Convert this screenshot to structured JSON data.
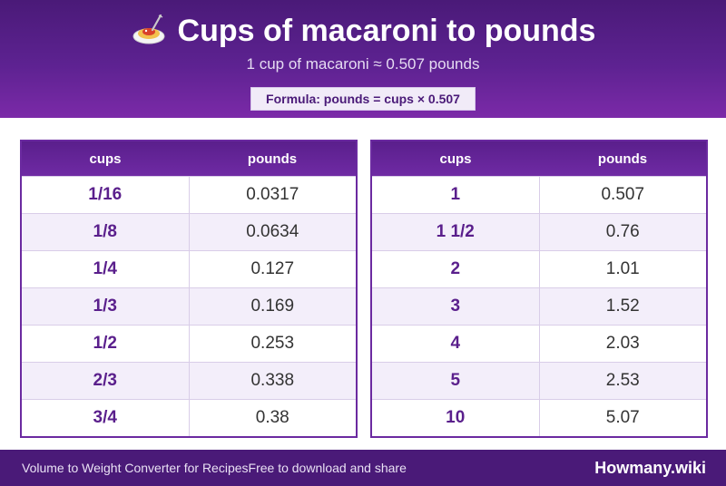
{
  "header": {
    "title": "Cups of macaroni to pounds",
    "icon": "spaghetti-icon",
    "subtitle": "1 cup of macaroni ≈ 0.507 pounds",
    "formula": "Formula: pounds = cups × 0.507"
  },
  "colors": {
    "primary": "#4a1a78",
    "accent": "#6b2aa0",
    "stripe": "#f3eefa"
  },
  "left_table": {
    "col1": "cups",
    "col2": "pounds",
    "rows": [
      {
        "cups": "1/16",
        "pounds": "0.0317"
      },
      {
        "cups": "1/8",
        "pounds": "0.0634"
      },
      {
        "cups": "1/4",
        "pounds": "0.127"
      },
      {
        "cups": "1/3",
        "pounds": "0.169"
      },
      {
        "cups": "1/2",
        "pounds": "0.253"
      },
      {
        "cups": "2/3",
        "pounds": "0.338"
      },
      {
        "cups": "3/4",
        "pounds": "0.38"
      }
    ]
  },
  "right_table": {
    "col1": "cups",
    "col2": "pounds",
    "rows": [
      {
        "cups": "1",
        "pounds": "0.507"
      },
      {
        "cups": "1 1/2",
        "pounds": "0.76"
      },
      {
        "cups": "2",
        "pounds": "1.01"
      },
      {
        "cups": "3",
        "pounds": "1.52"
      },
      {
        "cups": "4",
        "pounds": "2.03"
      },
      {
        "cups": "5",
        "pounds": "2.53"
      },
      {
        "cups": "10",
        "pounds": "5.07"
      }
    ]
  },
  "footer": {
    "left_text": "Volume to Weight Converter for RecipesFree to download and share",
    "brand": "Howmany.wiki"
  }
}
